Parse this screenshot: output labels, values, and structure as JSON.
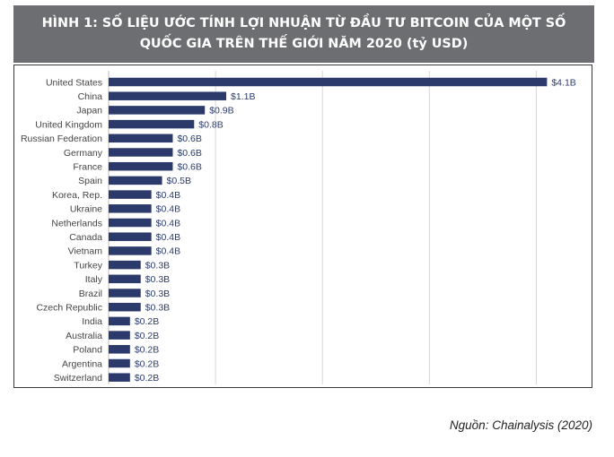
{
  "header": {
    "title_line1": "HÌNH 1: SỐ LIỆU ƯỚC TÍNH LỢI NHUẬN TỪ ĐẦU TƯ BITCOIN CỦA MỘT SỐ",
    "title_line2": "QUỐC GIA TRÊN THẾ GIỚI NĂM 2020 (tỷ USD)"
  },
  "source": "Nguồn: Chainalysis (2020)",
  "colors": {
    "bar": "#2b3a6b",
    "grid": "#d6d6d6",
    "title_bg": "#6d6e71"
  },
  "chart_data": {
    "type": "bar",
    "orientation": "horizontal",
    "title": "HÌNH 1: SỐ LIỆU ƯỚC TÍNH LỢI NHUẬN TỪ ĐẦU TƯ BITCOIN CỦA MỘT SỐ QUỐC GIA TRÊN THẾ GIỚI NĂM 2020 (tỷ USD)",
    "categories": [
      "United States",
      "China",
      "Japan",
      "United Kingdom",
      "Russian Federation",
      "Germany",
      "France",
      "Spain",
      "Korea, Rep.",
      "Ukraine",
      "Netherlands",
      "Canada",
      "Vietnam",
      "Turkey",
      "Italy",
      "Brazil",
      "Czech Republic",
      "India",
      "Australia",
      "Poland",
      "Argentina",
      "Switzerland"
    ],
    "values": [
      4.1,
      1.1,
      0.9,
      0.8,
      0.6,
      0.6,
      0.6,
      0.5,
      0.4,
      0.4,
      0.4,
      0.4,
      0.4,
      0.3,
      0.3,
      0.3,
      0.3,
      0.2,
      0.2,
      0.2,
      0.2,
      0.2
    ],
    "data_labels": [
      "$4.1B",
      "$1.1B",
      "$0.9B",
      "$0.8B",
      "$0.6B",
      "$0.6B",
      "$0.6B",
      "$0.5B",
      "$0.4B",
      "$0.4B",
      "$0.4B",
      "$0.4B",
      "$0.4B",
      "$0.3B",
      "$0.3B",
      "$0.3B",
      "$0.3B",
      "$0.2B",
      "$0.2B",
      "$0.2B",
      "$0.2B",
      "$0.2B"
    ],
    "xlim": [
      0,
      4.5
    ],
    "grid": true,
    "legend": false
  }
}
